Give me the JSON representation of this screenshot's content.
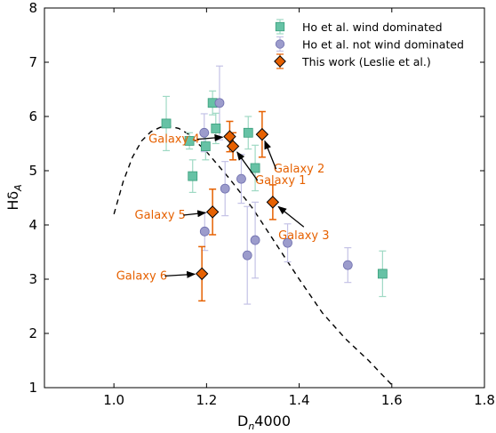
{
  "chart_data": {
    "type": "scatter",
    "xlabel_main": "D",
    "xlabel_sub": "n",
    "xlabel_tail": "4000",
    "ylabel_main": "Hδ",
    "ylabel_sub": "A",
    "xlim": [
      0.85,
      1.8
    ],
    "ylim": [
      1,
      8
    ],
    "xticks": [
      1.0,
      1.2,
      1.4,
      1.6,
      1.8
    ],
    "xtick_labels": [
      "1.0",
      "1.2",
      "1.4",
      "1.6",
      "1.8"
    ],
    "yticks": [
      1,
      2,
      3,
      4,
      5,
      6,
      7,
      8
    ],
    "ytick_labels": [
      "1",
      "2",
      "3",
      "4",
      "5",
      "6",
      "7",
      "8"
    ],
    "grid": false,
    "legend_position": "top-right",
    "series": [
      {
        "name": "Ho et al. wind dominated",
        "marker": "square",
        "color": "#66c2a5",
        "points": [
          {
            "x": 1.113,
            "y": 5.87,
            "yerr": 0.5
          },
          {
            "x": 1.163,
            "y": 5.55,
            "yerr": 0.15
          },
          {
            "x": 1.17,
            "y": 4.9,
            "yerr": 0.3
          },
          {
            "x": 1.198,
            "y": 5.45,
            "yerr": 0.25
          },
          {
            "x": 1.213,
            "y": 6.25,
            "yerr": 0.22
          },
          {
            "x": 1.22,
            "y": 5.78,
            "yerr": 0.28
          },
          {
            "x": 1.29,
            "y": 5.7,
            "yerr": 0.3
          },
          {
            "x": 1.305,
            "y": 5.05,
            "yerr": 0.42
          },
          {
            "x": 1.58,
            "y": 3.1,
            "yerr": 0.42
          }
        ]
      },
      {
        "name": "Ho et al. not wind dominated",
        "marker": "circle",
        "color": "#9c9ccc",
        "points": [
          {
            "x": 1.195,
            "y": 5.7,
            "yerr": 0.35
          },
          {
            "x": 1.228,
            "y": 6.25,
            "yerr": 0.68
          },
          {
            "x": 1.196,
            "y": 3.88,
            "yerr": 0.35
          },
          {
            "x": 1.24,
            "y": 4.67,
            "yerr": 0.5
          },
          {
            "x": 1.275,
            "y": 4.85,
            "yerr": 0.45
          },
          {
            "x": 1.288,
            "y": 3.44,
            "yerr": 0.9
          },
          {
            "x": 1.305,
            "y": 3.72,
            "yerr": 0.7
          },
          {
            "x": 1.375,
            "y": 3.67,
            "yerr": 0.35
          },
          {
            "x": 1.505,
            "y": 3.26,
            "yerr": 0.32
          }
        ]
      },
      {
        "name": "This work (Leslie et al.)",
        "marker": "diamond",
        "color": "#e66101",
        "points": [
          {
            "x": 1.25,
            "y": 5.63,
            "yerr": 0.28,
            "label": "Galaxy 4"
          },
          {
            "x": 1.32,
            "y": 5.67,
            "yerr": 0.42,
            "label": "Galaxy 2"
          },
          {
            "x": 1.257,
            "y": 5.45,
            "yerr": 0.25,
            "label": "Galaxy 1"
          },
          {
            "x": 1.343,
            "y": 4.42,
            "yerr": 0.32,
            "label": "Galaxy 3"
          },
          {
            "x": 1.213,
            "y": 4.24,
            "yerr": 0.42,
            "label": "Galaxy 5"
          },
          {
            "x": 1.19,
            "y": 3.1,
            "yerr": 0.5,
            "label": "Galaxy 6"
          }
        ]
      }
    ],
    "model_curve": [
      [
        1.0,
        4.2
      ],
      [
        1.02,
        4.8
      ],
      [
        1.04,
        5.25
      ],
      [
        1.06,
        5.55
      ],
      [
        1.08,
        5.72
      ],
      [
        1.1,
        5.8
      ],
      [
        1.12,
        5.82
      ],
      [
        1.14,
        5.78
      ],
      [
        1.16,
        5.68
      ],
      [
        1.2,
        5.35
      ],
      [
        1.25,
        4.85
      ],
      [
        1.3,
        4.3
      ],
      [
        1.35,
        3.65
      ],
      [
        1.4,
        3.0
      ],
      [
        1.45,
        2.38
      ],
      [
        1.5,
        1.9
      ],
      [
        1.55,
        1.5
      ],
      [
        1.6,
        1.05
      ]
    ],
    "annotations": [
      {
        "text": "Galaxy 4",
        "tx": 1.13,
        "ty": 5.58,
        "ax": 1.25,
        "ay": 5.63
      },
      {
        "text": "Galaxy 2",
        "tx": 1.4,
        "ty": 5.03,
        "ax": 1.32,
        "ay": 5.67
      },
      {
        "text": "Galaxy 1",
        "tx": 1.36,
        "ty": 4.82,
        "ax": 1.257,
        "ay": 5.45
      },
      {
        "text": "Galaxy 3",
        "tx": 1.41,
        "ty": 3.8,
        "ax": 1.343,
        "ay": 4.42
      },
      {
        "text": "Galaxy 5",
        "tx": 1.1,
        "ty": 4.18,
        "ax": 1.213,
        "ay": 4.24
      },
      {
        "text": "Galaxy 6",
        "tx": 1.06,
        "ty": 3.06,
        "ax": 1.19,
        "ay": 3.1
      }
    ]
  }
}
